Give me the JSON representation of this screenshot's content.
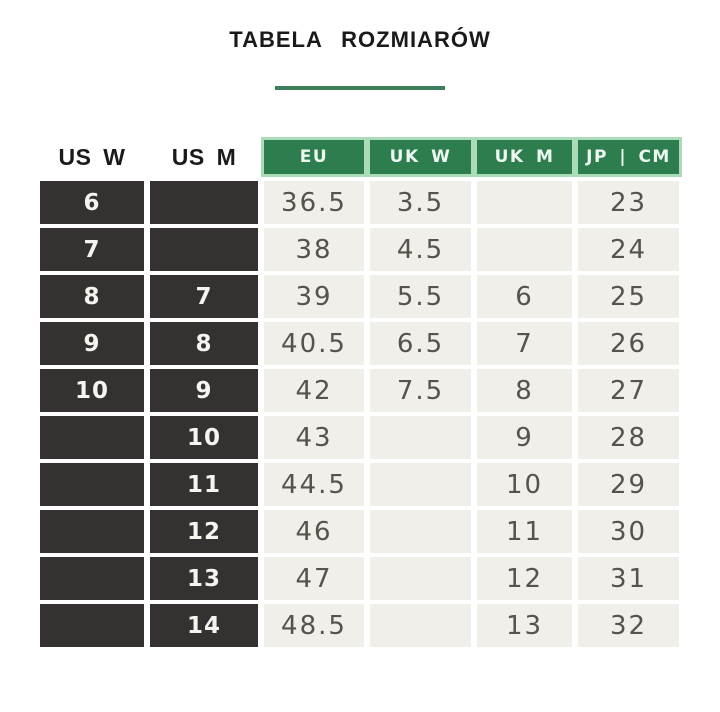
{
  "title": "TABELA ROZMIARÓW",
  "colors": {
    "green": "#2e7d4e",
    "green_light": "#aadcb9",
    "green_divider": "#3c7d5a",
    "dark_cell": "#343130",
    "beige_cell": "#f1efe9"
  },
  "table": {
    "headers": [
      {
        "key": "us_w",
        "label": "US W",
        "style": "plain"
      },
      {
        "key": "us_m",
        "label": "US M",
        "style": "plain"
      },
      {
        "key": "eu",
        "label": "EU",
        "style": "green"
      },
      {
        "key": "uk_w",
        "label": "UK W",
        "style": "green"
      },
      {
        "key": "uk_m",
        "label": "UK M",
        "style": "green"
      },
      {
        "key": "jp_cm",
        "label": "JP | CM",
        "style": "green"
      }
    ],
    "rows": [
      {
        "us_w": "6",
        "us_m": "",
        "eu": "36.5",
        "uk_w": "3.5",
        "uk_m": "",
        "jp_cm": "23"
      },
      {
        "us_w": "7",
        "us_m": "",
        "eu": "38",
        "uk_w": "4.5",
        "uk_m": "",
        "jp_cm": "24"
      },
      {
        "us_w": "8",
        "us_m": "7",
        "eu": "39",
        "uk_w": "5.5",
        "uk_m": "6",
        "jp_cm": "25"
      },
      {
        "us_w": "9",
        "us_m": "8",
        "eu": "40.5",
        "uk_w": "6.5",
        "uk_m": "7",
        "jp_cm": "26"
      },
      {
        "us_w": "10",
        "us_m": "9",
        "eu": "42",
        "uk_w": "7.5",
        "uk_m": "8",
        "jp_cm": "27"
      },
      {
        "us_w": "",
        "us_m": "10",
        "eu": "43",
        "uk_w": "",
        "uk_m": "9",
        "jp_cm": "28"
      },
      {
        "us_w": "",
        "us_m": "11",
        "eu": "44.5",
        "uk_w": "",
        "uk_m": "10",
        "jp_cm": "29"
      },
      {
        "us_w": "",
        "us_m": "12",
        "eu": "46",
        "uk_w": "",
        "uk_m": "11",
        "jp_cm": "30"
      },
      {
        "us_w": "",
        "us_m": "13",
        "eu": "47",
        "uk_w": "",
        "uk_m": "12",
        "jp_cm": "31"
      },
      {
        "us_w": "",
        "us_m": "14",
        "eu": "48.5",
        "uk_w": "",
        "uk_m": "13",
        "jp_cm": "32"
      }
    ]
  }
}
